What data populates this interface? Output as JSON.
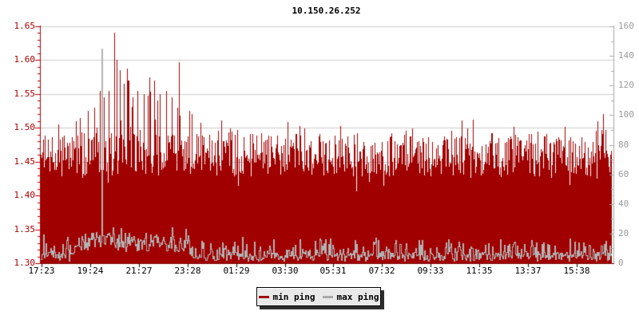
{
  "header": {
    "title": "10.150.26.252"
  },
  "legend": {
    "items": [
      {
        "label": "min ping",
        "color": "#a00000"
      },
      {
        "label": "max ping",
        "color": "#a8a8a8"
      }
    ]
  },
  "chart_data": {
    "type": "area",
    "title": "10.150.26.252",
    "x_tick_labels": [
      "17:23",
      "19:24",
      "21:27",
      "23:28",
      "01:29",
      "03:30",
      "05:31",
      "07:32",
      "09:33",
      "11:35",
      "13:37",
      "15:38"
    ],
    "left_axis": {
      "min": 1.3,
      "max": 1.65,
      "major_step": 0.05,
      "minor_step": 0.01,
      "tick_labels": [
        "1.65",
        "1.60",
        "1.55",
        "1.50",
        "1.45",
        "1.40",
        "1.35",
        "1.30"
      ],
      "axis_color": "#aa0000",
      "label_color": "#aa0000"
    },
    "right_axis": {
      "min": 0,
      "max": 160,
      "major_step": 20,
      "minor_step": 10,
      "tick_labels": [
        "160",
        "140",
        "120",
        "100",
        "80",
        "60",
        "40",
        "20",
        "0"
      ],
      "axis_color": "#a8a8a8",
      "label_color": "#9a9a9a"
    },
    "grid": {
      "horizontal": true,
      "vertical": false,
      "color": "#cbcbcb"
    },
    "bottom_axis_color": "#7d0000",
    "x_tick_color": "#000000",
    "prng_seed": 1337,
    "series": [
      {
        "name": "min ping",
        "axis": "left",
        "style": "filled_area",
        "color": "#a00000",
        "typical_top_range": [
          1.43,
          1.5
        ],
        "noise": {
          "base": 1.428,
          "spread": 0.065,
          "peak_prob": 0.22,
          "peak_extra": 0.025,
          "dip_prob": 0.06,
          "dip_depth": 0.025
        },
        "burst": {
          "from": 0.08,
          "to": 0.27,
          "prob": 0.27,
          "extra": 0.1
        },
        "spikes": [
          [
            0.062,
            1.51
          ],
          [
            0.069,
            1.515
          ],
          [
            0.083,
            1.525
          ],
          [
            0.094,
            1.53
          ],
          [
            0.104,
            1.555
          ],
          [
            0.111,
            1.545
          ],
          [
            0.119,
            1.555
          ],
          [
            0.129,
            1.64
          ],
          [
            0.133,
            1.6
          ],
          [
            0.139,
            1.585
          ],
          [
            0.146,
            1.565
          ],
          [
            0.153,
            1.57
          ],
          [
            0.161,
            1.545
          ],
          [
            0.17,
            1.555
          ],
          [
            0.181,
            1.55
          ],
          [
            0.191,
            1.575
          ],
          [
            0.199,
            1.57
          ],
          [
            0.209,
            1.55
          ],
          [
            0.22,
            1.555
          ],
          [
            0.23,
            1.545
          ],
          [
            0.24,
            1.53
          ],
          [
            0.265,
            1.52
          ],
          [
            0.976,
            1.51
          ],
          [
            0.986,
            1.52
          ]
        ],
        "max_value": 1.64
      },
      {
        "name": "max ping",
        "axis": "right",
        "style": "line",
        "color": "#b2b2b2",
        "typical_range": [
          2,
          25
        ],
        "noise": {
          "base": 1.5,
          "spread": 6,
          "bump_prob": 0.38,
          "bump_extra": 11,
          "surge_prob": 0.05,
          "surge_extra": 8
        },
        "burst": {
          "from": 0.06,
          "to": 0.26,
          "base": 8,
          "spread": 13,
          "bump_prob": 0.2,
          "bump_extra": 5
        },
        "spikes": [
          [
            0.106,
            145
          ]
        ],
        "max_value": 145
      }
    ]
  }
}
